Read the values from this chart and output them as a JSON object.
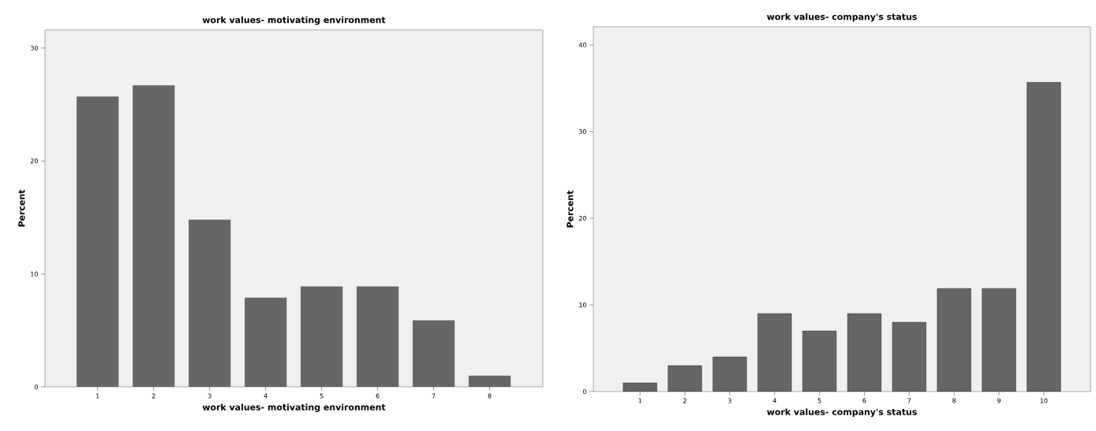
{
  "chart_data": [
    {
      "type": "bar",
      "title": "work values- motivating environment",
      "xlabel": "work values- motivating environment",
      "ylabel": "Percent",
      "categories": [
        "1",
        "2",
        "3",
        "4",
        "5",
        "6",
        "7",
        "8"
      ],
      "values": [
        25.7,
        26.7,
        14.8,
        7.9,
        8.9,
        8.9,
        5.9,
        1.0
      ],
      "color": "#666666",
      "ylim": [
        0,
        31.6
      ],
      "yticks": [
        0,
        10,
        20,
        30
      ]
    },
    {
      "type": "bar",
      "title": "work values- company's status",
      "xlabel": "work values- company's status",
      "ylabel": "Percent",
      "categories": [
        "1",
        "2",
        "3",
        "4",
        "5",
        "6",
        "7",
        "8",
        "9",
        "10"
      ],
      "values": [
        1.0,
        3.0,
        4.0,
        9.0,
        7.0,
        9.0,
        8.0,
        11.9,
        11.9,
        35.7
      ],
      "color": "#666666",
      "ylim": [
        0,
        42.1
      ],
      "yticks": [
        0,
        10,
        20,
        30,
        40
      ]
    }
  ]
}
